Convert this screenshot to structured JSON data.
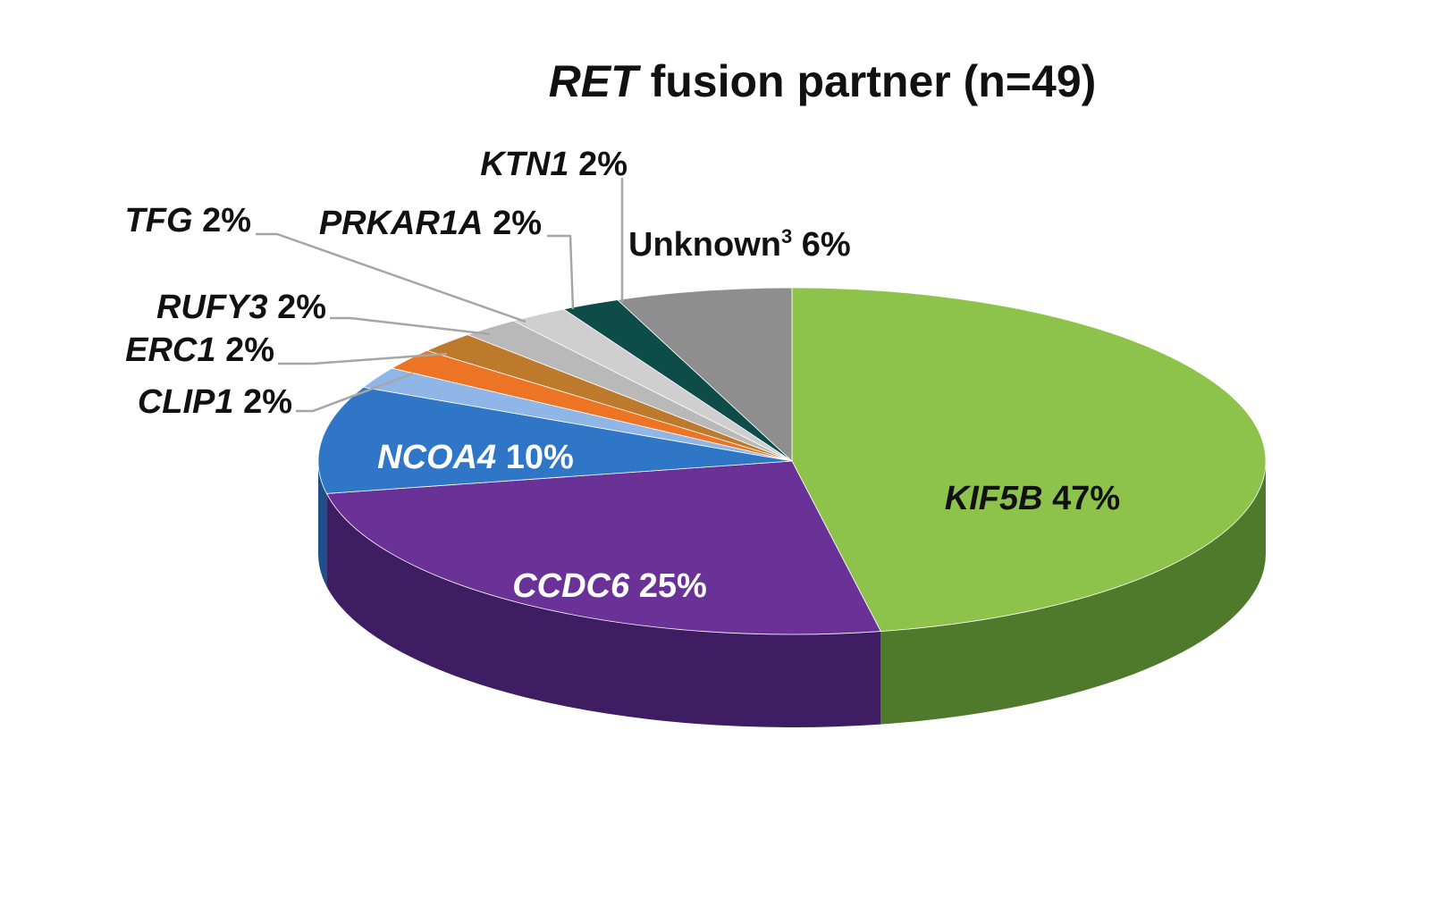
{
  "chart_data": {
    "type": "pie",
    "title_gene": "RET",
    "title_rest": " fusion partner (n=49)",
    "slices": [
      {
        "gene": "KIF5B",
        "pct": "47%",
        "value": 47,
        "color": "#8dc34a",
        "side_color": "#4f7a2b",
        "label_style": "dark"
      },
      {
        "gene": "CCDC6",
        "pct": "25%",
        "value": 25,
        "color": "#6a3296",
        "side_color": "#3f1d62",
        "label_style": "light"
      },
      {
        "gene": "NCOA4",
        "pct": "10%",
        "value": 10,
        "color": "#2f77c6",
        "side_color": "#1e4f88",
        "label_style": "light"
      },
      {
        "gene": "CLIP1",
        "pct": "2%",
        "value": 2,
        "color": "#8fb6e6",
        "side_color": "#5f86b4",
        "label_style": "dark"
      },
      {
        "gene": "ERC1",
        "pct": "2%",
        "value": 2,
        "color": "#ee7425",
        "side_color": "#b85318",
        "label_style": "dark"
      },
      {
        "gene": "RUFY3",
        "pct": "2%",
        "value": 2,
        "color": "#bd7a2c",
        "side_color": "#8a561d",
        "label_style": "dark"
      },
      {
        "gene": "TFG",
        "pct": "2%",
        "value": 2,
        "color": "#b9b9b9",
        "side_color": "#8a8a8a",
        "label_style": "dark"
      },
      {
        "gene": "PRKAR1A",
        "pct": "2%",
        "value": 2,
        "color": "#cfcfcf",
        "side_color": "#9a9a9a",
        "label_style": "dark"
      },
      {
        "gene": "KTN1",
        "pct": "2%",
        "value": 2,
        "color": "#0e4c4a",
        "side_color": "#073230",
        "label_style": "dark"
      },
      {
        "gene": "Unknown",
        "superscript": "3",
        "pct": "6%",
        "value": 6,
        "color": "#8e8e8e",
        "side_color": "#6a6a6a",
        "label_style": "dark"
      }
    ]
  }
}
